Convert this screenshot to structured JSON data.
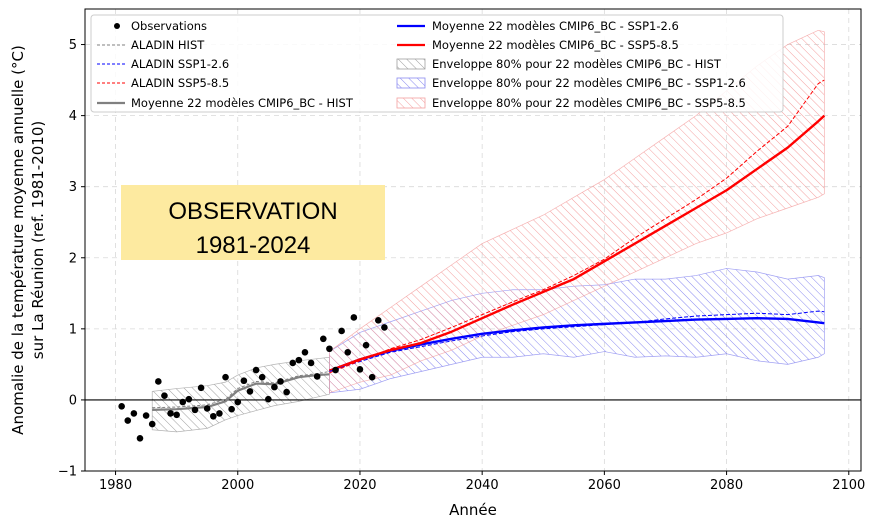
{
  "chart_data": {
    "type": "line",
    "xlabel": "Année",
    "ylabel_line1": "Anomalie de la température moyenne annuelle (°C)",
    "ylabel_line2": "sur La Réunion (ref. 1981-2010)",
    "xlim": [
      1975,
      2102
    ],
    "ylim": [
      -1,
      5.5
    ],
    "xticks": [
      1980,
      2000,
      2020,
      2040,
      2060,
      2080,
      2100
    ],
    "yticks": [
      -1,
      0,
      1,
      2,
      3,
      4,
      5
    ],
    "grid": true,
    "legend_position": "top-left",
    "annotation": {
      "line1": "OBSERVATION",
      "line2": "1981-2024",
      "background": "#fdeaa0"
    },
    "colors": {
      "hist": "#808080",
      "ssp126": "#0000ff",
      "ssp585": "#ff0000",
      "obs": "#000000"
    },
    "legend": [
      "Observations",
      "ALADIN HIST",
      "ALADIN SSP1-2.6",
      "ALADIN SSP5-8.5",
      "Moyenne 22 modèles CMIP6_BC - HIST",
      "Moyenne 22 modèles CMIP6_BC - SSP1-2.6",
      "Moyenne 22 modèles CMIP6_BC - SSP5-8.5",
      "Enveloppe 80% pour 22 modèles CMIP6_BC -  HIST",
      "Enveloppe 80% pour 22 modèles CMIP6_BC -  SSP1-2.6",
      "Enveloppe 80% pour 22 modèles CMIP6_BC -  SSP5-8.5"
    ],
    "observations": {
      "x": [
        1981,
        1982,
        1983,
        1984,
        1985,
        1986,
        1987,
        1988,
        1989,
        1990,
        1991,
        1992,
        1993,
        1994,
        1995,
        1996,
        1997,
        1998,
        1999,
        2000,
        2001,
        2002,
        2003,
        2004,
        2005,
        2006,
        2007,
        2008,
        2009,
        2010,
        2011,
        2012,
        2013,
        2014,
        2015,
        2016,
        2017,
        2018,
        2019,
        2020,
        2021,
        2022,
        2023,
        2024
      ],
      "y": [
        -0.09,
        -0.29,
        -0.19,
        -0.54,
        -0.22,
        -0.34,
        0.26,
        0.06,
        -0.19,
        -0.21,
        -0.03,
        0.01,
        -0.14,
        0.17,
        -0.12,
        -0.23,
        -0.19,
        0.32,
        -0.13,
        -0.03,
        0.27,
        0.12,
        0.42,
        0.32,
        0.01,
        0.18,
        0.26,
        0.11,
        0.52,
        0.56,
        0.67,
        0.52,
        0.33,
        0.86,
        0.72,
        0.42,
        0.97,
        0.67,
        1.16,
        0.43,
        0.77,
        0.32,
        1.12,
        1.02
      ]
    },
    "series": [
      {
        "name": "Moyenne 22 modèles CMIP6_BC - HIST",
        "x": [
          1986,
          1990,
          1995,
          1998,
          2000,
          2003,
          2006,
          2010,
          2013,
          2015
        ],
        "values": [
          -0.14,
          -0.13,
          -0.1,
          -0.02,
          0.13,
          0.23,
          0.22,
          0.32,
          0.35,
          0.36
        ]
      },
      {
        "name": "ALADIN HIST",
        "x": [
          1986,
          1990,
          1995,
          1998,
          2000,
          2003,
          2006,
          2010,
          2013,
          2015
        ],
        "values": [
          -0.11,
          -0.1,
          -0.07,
          0.01,
          0.16,
          0.26,
          0.24,
          0.34,
          0.37,
          0.4
        ]
      },
      {
        "name": "Moyenne 22 modèles CMIP6_BC - SSP1-2.6",
        "x": [
          2015,
          2020,
          2025,
          2030,
          2035,
          2040,
          2045,
          2050,
          2055,
          2060,
          2065,
          2070,
          2075,
          2080,
          2085,
          2090,
          2095,
          2096
        ],
        "values": [
          0.41,
          0.57,
          0.69,
          0.78,
          0.86,
          0.93,
          0.98,
          1.02,
          1.05,
          1.07,
          1.09,
          1.11,
          1.13,
          1.14,
          1.15,
          1.14,
          1.09,
          1.08
        ]
      },
      {
        "name": "Moyenne 22 modèles CMIP6_BC - SSP5-8.5",
        "x": [
          2015,
          2020,
          2025,
          2030,
          2035,
          2040,
          2045,
          2050,
          2055,
          2060,
          2065,
          2070,
          2075,
          2080,
          2085,
          2090,
          2095,
          2096
        ],
        "values": [
          0.41,
          0.57,
          0.7,
          0.8,
          0.96,
          1.15,
          1.34,
          1.52,
          1.7,
          1.95,
          2.2,
          2.45,
          2.7,
          2.95,
          3.25,
          3.55,
          3.92,
          4.0
        ]
      },
      {
        "name": "ALADIN SSP1-2.6",
        "x": [
          2015,
          2020,
          2025,
          2030,
          2035,
          2040,
          2045,
          2050,
          2055,
          2060,
          2065,
          2070,
          2075,
          2080,
          2085,
          2090,
          2095,
          2096
        ],
        "values": [
          0.4,
          0.54,
          0.67,
          0.75,
          0.83,
          0.9,
          0.96,
          1.0,
          1.03,
          1.06,
          1.09,
          1.14,
          1.18,
          1.2,
          1.22,
          1.2,
          1.25,
          1.24
        ]
      },
      {
        "name": "ALADIN SSP5-8.5",
        "x": [
          2015,
          2020,
          2025,
          2030,
          2035,
          2040,
          2045,
          2050,
          2055,
          2060,
          2065,
          2070,
          2075,
          2080,
          2085,
          2090,
          2095,
          2096
        ],
        "values": [
          0.38,
          0.55,
          0.72,
          0.85,
          1.02,
          1.2,
          1.38,
          1.55,
          1.75,
          1.98,
          2.28,
          2.55,
          2.82,
          3.12,
          3.5,
          3.85,
          4.45,
          4.5
        ]
      }
    ],
    "envelopes": [
      {
        "name": "Enveloppe 80% pour 22 modèles CMIP6_BC -  HIST",
        "x": [
          1986,
          1990,
          1995,
          1998,
          2000,
          2003,
          2006,
          2010,
          2013,
          2015
        ],
        "low": [
          -0.42,
          -0.45,
          -0.4,
          -0.28,
          -0.22,
          -0.15,
          -0.08,
          -0.02,
          0.04,
          0.08
        ],
        "high": [
          0.12,
          0.16,
          0.2,
          0.25,
          0.35,
          0.45,
          0.5,
          0.55,
          0.58,
          0.6
        ]
      },
      {
        "name": "Enveloppe 80% pour 22 modèles CMIP6_BC -  SSP1-2.6",
        "x": [
          2015,
          2020,
          2025,
          2030,
          2035,
          2040,
          2045,
          2050,
          2055,
          2060,
          2065,
          2070,
          2075,
          2080,
          2085,
          2090,
          2095,
          2096
        ],
        "low": [
          0.1,
          0.15,
          0.3,
          0.4,
          0.5,
          0.6,
          0.6,
          0.65,
          0.6,
          0.68,
          0.6,
          0.62,
          0.6,
          0.65,
          0.55,
          0.5,
          0.6,
          0.65
        ],
        "high": [
          0.68,
          0.95,
          1.1,
          1.25,
          1.4,
          1.5,
          1.55,
          1.55,
          1.6,
          1.62,
          1.7,
          1.7,
          1.75,
          1.85,
          1.8,
          1.7,
          1.75,
          1.72
        ]
      },
      {
        "name": "Enveloppe 80% pour 22 modèles CMIP6_BC -  SSP5-8.5",
        "x": [
          2015,
          2020,
          2025,
          2030,
          2035,
          2040,
          2045,
          2050,
          2055,
          2060,
          2065,
          2070,
          2075,
          2080,
          2085,
          2090,
          2095,
          2096
        ],
        "low": [
          0.1,
          0.25,
          0.35,
          0.55,
          0.7,
          0.9,
          1.05,
          1.2,
          1.4,
          1.6,
          1.8,
          2.0,
          2.2,
          2.35,
          2.55,
          2.7,
          2.85,
          2.9
        ],
        "high": [
          0.68,
          1.0,
          1.3,
          1.6,
          1.9,
          2.2,
          2.4,
          2.6,
          2.85,
          3.1,
          3.4,
          3.7,
          4.0,
          4.35,
          4.7,
          5.0,
          5.2,
          5.18
        ]
      }
    ]
  }
}
